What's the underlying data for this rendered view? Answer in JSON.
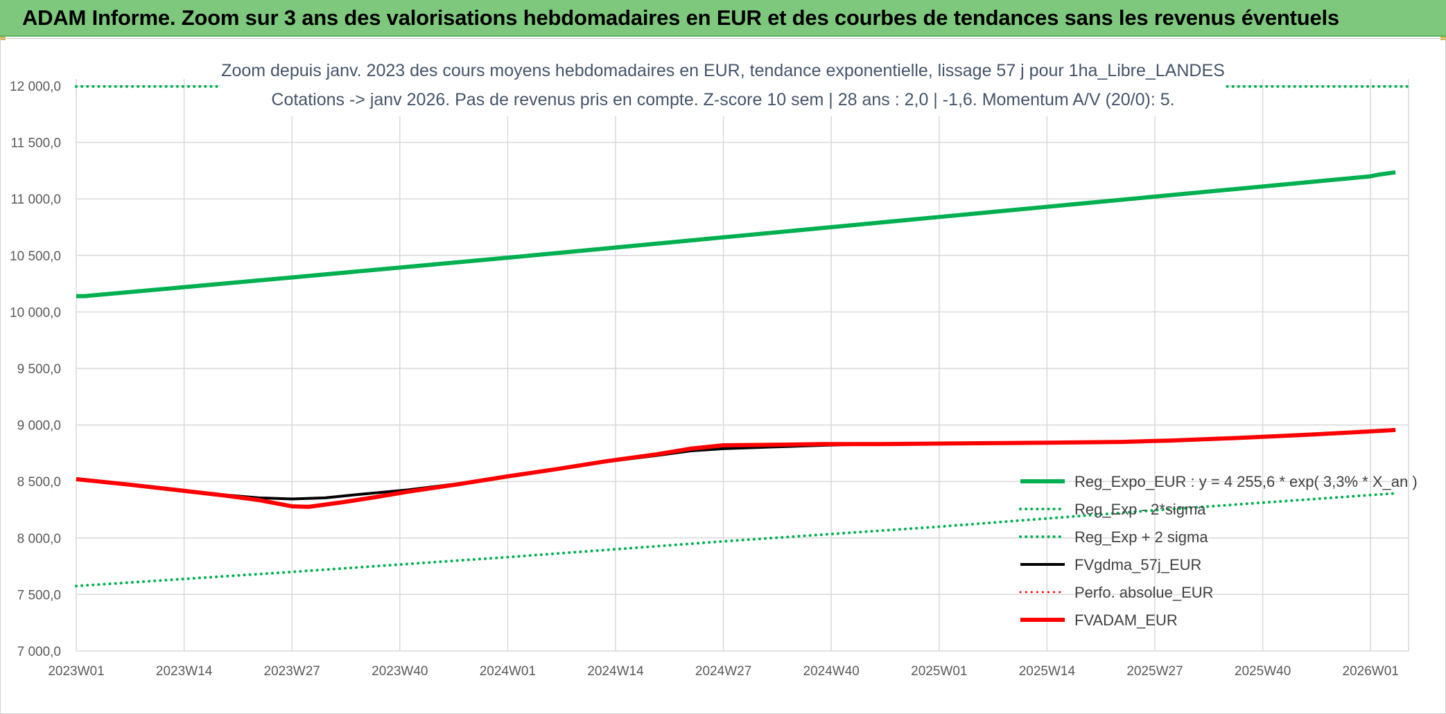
{
  "banner": {
    "title": "ADAM Informe. Zoom sur 3 ans des valorisations hebdomadaires en EUR et des courbes de tendances sans les revenus éventuels"
  },
  "colors": {
    "banner_bg": "#7dc87d",
    "trend": "#00b050",
    "black_series": "#000000",
    "red_series": "#ff0000",
    "grid": "#d9d9d9",
    "subtitle": "#44546a"
  },
  "chart_data": {
    "type": "line",
    "title_line1": "Zoom depuis janv. 2023 des cours moyens hebdomadaires en EUR, tendance exponentielle, lissage 57 j pour 1ha_Libre_LANDES",
    "title_line2": "Cotations -> janv 2026. Pas de revenus pris en compte. Z-score 10 sem | 28 ans : 2,0 | -1,6. Momentum A/V (20/0): 5.",
    "x_categories": [
      "2023W01",
      "2023W14",
      "2023W27",
      "2023W40",
      "2024W01",
      "2024W14",
      "2024W27",
      "2024W40",
      "2025W01",
      "2025W14",
      "2025W27",
      "2025W40",
      "2026W01"
    ],
    "x_range_weeks": [
      0,
      160
    ],
    "ylim": [
      7000,
      12000
    ],
    "y_ticks": [
      "7 000,0",
      "7 500,0",
      "8 000,0",
      "8 500,0",
      "9 000,0",
      "9 500,0",
      "10 000,0",
      "10 500,0",
      "11 000,0",
      "11 500,0",
      "12 000,0"
    ],
    "y_tick_values": [
      7000,
      7500,
      8000,
      8500,
      9000,
      9500,
      10000,
      10500,
      11000,
      11500,
      12000
    ],
    "grid": true,
    "legend_position": "bottom-right",
    "series": [
      {
        "name": "Reg_Expo_EUR : y = 4 255,6 * exp( 3,3% *  X_an )",
        "color": "#00b050",
        "style": "solid",
        "width": 6,
        "points": [
          [
            0,
            10140
          ],
          [
            1,
            10140
          ],
          [
            26,
            10305
          ],
          [
            52,
            10480
          ],
          [
            78,
            10660
          ],
          [
            104,
            10840
          ],
          [
            130,
            11020
          ],
          [
            156,
            11200
          ],
          [
            157,
            11215
          ],
          [
            159,
            11235
          ]
        ]
      },
      {
        "name": "Reg_Exp - 2*sigma",
        "color": "#00b050",
        "style": "dotted",
        "width": 4,
        "points": [
          [
            0,
            7575
          ],
          [
            26,
            7700
          ],
          [
            52,
            7830
          ],
          [
            78,
            7970
          ],
          [
            104,
            8100
          ],
          [
            130,
            8245
          ],
          [
            159,
            8395
          ]
        ]
      },
      {
        "name": "Reg_Exp + 2 sigma",
        "color": "#00b050",
        "style": "dotted",
        "width": 4,
        "points": [
          [
            0,
            11995
          ],
          [
            159,
            11995
          ]
        ]
      },
      {
        "name": "FVgdma_57j_EUR",
        "color": "#000000",
        "style": "solid",
        "width": 4,
        "points": [
          [
            0,
            8515
          ],
          [
            6,
            8480
          ],
          [
            12,
            8430
          ],
          [
            18,
            8380
          ],
          [
            22,
            8355
          ],
          [
            26,
            8345
          ],
          [
            30,
            8355
          ],
          [
            34,
            8385
          ],
          [
            40,
            8425
          ],
          [
            46,
            8480
          ],
          [
            52,
            8550
          ],
          [
            58,
            8610
          ],
          [
            64,
            8675
          ],
          [
            70,
            8730
          ],
          [
            74,
            8770
          ],
          [
            78,
            8790
          ],
          [
            84,
            8805
          ],
          [
            90,
            8820
          ],
          [
            96,
            8830
          ],
          [
            104,
            8835
          ],
          [
            112,
            8840
          ],
          [
            120,
            8845
          ],
          [
            126,
            8850
          ],
          [
            132,
            8860
          ],
          [
            140,
            8885
          ],
          [
            148,
            8910
          ],
          [
            154,
            8935
          ],
          [
            159,
            8955
          ]
        ]
      },
      {
        "name": "Perfo. absolue_EUR",
        "color": "#ff0000",
        "style": "dotted",
        "width": 3,
        "points": []
      },
      {
        "name": "FVADAM_EUR",
        "color": "#ff0000",
        "style": "solid",
        "width": 6,
        "points": [
          [
            0,
            8520
          ],
          [
            6,
            8475
          ],
          [
            12,
            8425
          ],
          [
            18,
            8375
          ],
          [
            22,
            8335
          ],
          [
            26,
            8280
          ],
          [
            28,
            8275
          ],
          [
            32,
            8315
          ],
          [
            36,
            8360
          ],
          [
            40,
            8410
          ],
          [
            46,
            8475
          ],
          [
            52,
            8545
          ],
          [
            58,
            8610
          ],
          [
            64,
            8680
          ],
          [
            70,
            8740
          ],
          [
            74,
            8790
          ],
          [
            78,
            8820
          ],
          [
            84,
            8825
          ],
          [
            90,
            8830
          ],
          [
            96,
            8830
          ],
          [
            104,
            8835
          ],
          [
            112,
            8840
          ],
          [
            120,
            8845
          ],
          [
            126,
            8850
          ],
          [
            132,
            8862
          ],
          [
            140,
            8885
          ],
          [
            148,
            8912
          ],
          [
            154,
            8935
          ],
          [
            159,
            8955
          ]
        ]
      }
    ]
  }
}
